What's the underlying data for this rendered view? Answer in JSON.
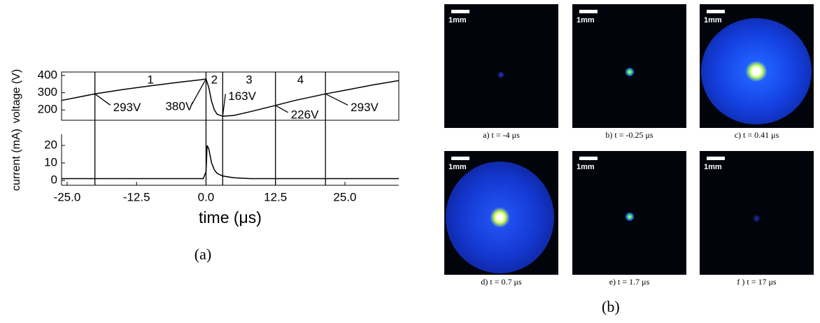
{
  "chart_data": [
    {
      "type": "line",
      "ylabel": "voltage (V)",
      "x": [
        -26,
        -20,
        -15,
        -10,
        -5,
        -1,
        0,
        0.5,
        1,
        1.5,
        2,
        3,
        5,
        8,
        12.5,
        16,
        21.5,
        26,
        30,
        34.7
      ],
      "values": [
        255,
        293,
        318,
        340,
        360,
        375,
        380,
        330,
        250,
        200,
        175,
        163,
        168,
        190,
        226,
        255,
        293,
        320,
        345,
        370
      ],
      "color": "#000000",
      "xlim": [
        -26,
        34.7
      ],
      "ylim": [
        140,
        420
      ],
      "yticks": [
        200,
        300,
        400
      ],
      "regions": [
        "1",
        "2",
        "3",
        "4"
      ],
      "annotations": [
        {
          "text": "293V",
          "x": -20,
          "y": 293
        },
        {
          "text": "380V",
          "x": 0,
          "y": 380
        },
        {
          "text": "163V",
          "x": 3,
          "y": 163
        },
        {
          "text": "226V",
          "x": 12.5,
          "y": 226
        },
        {
          "text": "293V",
          "x": 21.5,
          "y": 293
        }
      ]
    },
    {
      "type": "line",
      "ylabel": "current (mA)",
      "xlabel": "time (μs)",
      "x": [
        -26,
        -20,
        -10,
        -0.5,
        0,
        0.2,
        0.5,
        1,
        1.5,
        2,
        3,
        5,
        8,
        12,
        20,
        30,
        34.7
      ],
      "values": [
        1,
        1,
        1,
        1,
        5,
        20,
        18,
        10,
        6,
        4,
        2.5,
        1.5,
        1,
        1,
        1,
        1,
        1
      ],
      "color": "#000000",
      "xlim": [
        -26,
        34.7
      ],
      "ylim": [
        -2.8,
        26.4
      ],
      "yticks": [
        0,
        10,
        20
      ],
      "xticks": [
        {
          "value": -25,
          "label": "-25.0"
        },
        -12.5,
        {
          "value": 0,
          "label": "0.0"
        },
        12.5,
        {
          "value": 25,
          "label": "25.0"
        }
      ]
    }
  ],
  "time_markers": [
    -20,
    0,
    3,
    12.5,
    21.5
  ],
  "panel_a_label": "(a)",
  "panel_b": {
    "label": "(b)",
    "images": [
      {
        "scale": "1mm",
        "caption": "a) t = -4 μs"
      },
      {
        "scale": "1mm",
        "caption": "b)  t = -0.25 μs"
      },
      {
        "scale": "1mm",
        "caption": "c)  t = 0.41 μs"
      },
      {
        "scale": "1mm",
        "caption": "d) t = 0.7 μs"
      },
      {
        "scale": "1mm",
        "caption": "e) t = 1.7 μs"
      },
      {
        "scale": "1mm",
        "caption": "f ) t = 17 μs"
      }
    ]
  }
}
